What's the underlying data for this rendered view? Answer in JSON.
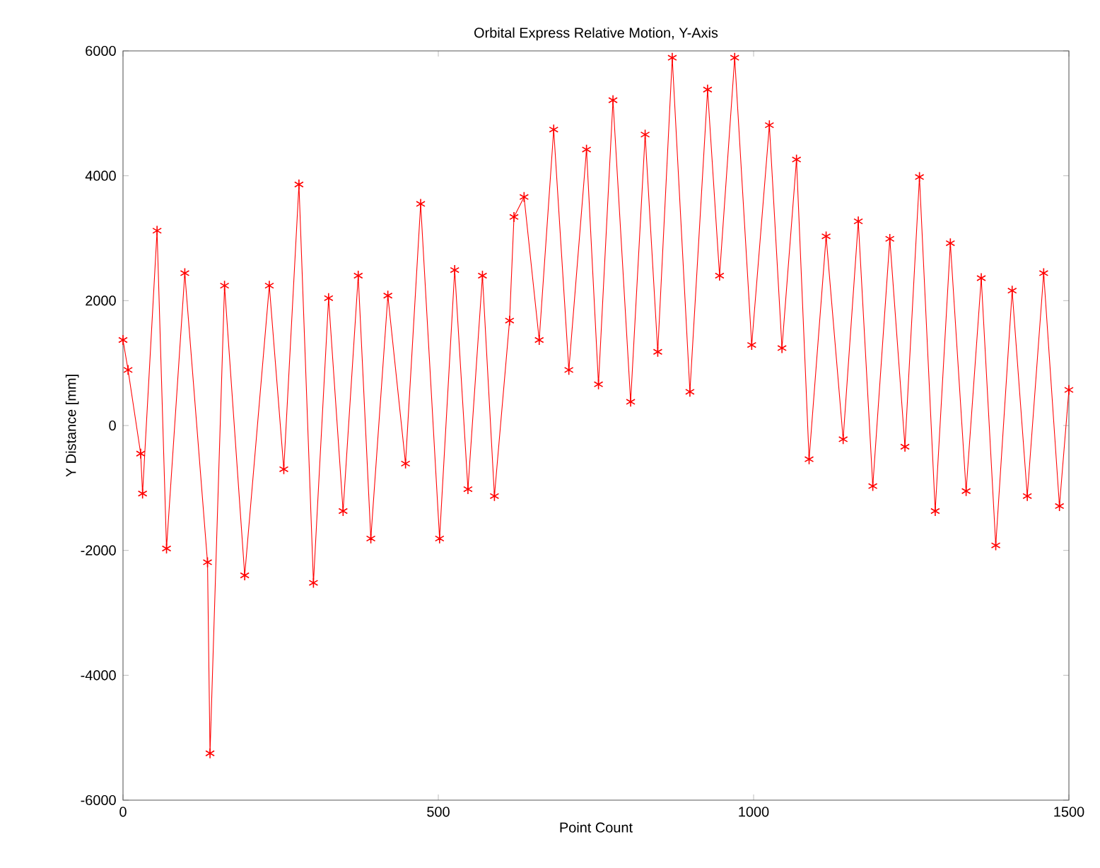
{
  "chart_data": {
    "type": "line",
    "title": "Orbital Express Relative Motion, Y-Axis",
    "xlabel": "Point Count",
    "ylabel": "Y Distance [mm]",
    "xlim": [
      0,
      1500
    ],
    "xticks": [
      0,
      500,
      1000,
      1500
    ],
    "ylim": [
      -6000,
      6000
    ],
    "yticks": [
      -6000,
      -4000,
      -2000,
      0,
      2000,
      4000,
      6000
    ],
    "grid": false,
    "marker": "cross",
    "line_style": "solid",
    "series": [
      {
        "color": "#ff0000",
        "x": [
          0,
          8,
          28,
          31,
          54,
          69,
          98,
          134,
          138,
          161,
          193,
          232,
          255,
          279,
          302,
          326,
          349,
          373,
          393,
          420,
          448,
          472,
          502,
          526,
          547,
          570,
          589,
          613,
          620,
          636,
          660,
          683,
          707,
          735,
          754,
          777,
          805,
          828,
          848,
          871,
          899,
          927,
          946,
          970,
          997,
          1025,
          1045,
          1068,
          1088,
          1115,
          1142,
          1166,
          1189,
          1216,
          1240,
          1263,
          1288,
          1312,
          1337,
          1361,
          1384,
          1410,
          1434,
          1460,
          1485,
          1500
        ],
        "values": [
          1370,
          890,
          -450,
          -1090,
          3120,
          -1970,
          2440,
          -2190,
          -5250,
          2240,
          -2400,
          2240,
          -700,
          3860,
          -2520,
          2040,
          -1370,
          2400,
          -1810,
          2080,
          -610,
          3550,
          -1810,
          2490,
          -1020,
          2400,
          -1130,
          1680,
          3340,
          3660,
          1370,
          4740,
          890,
          4420,
          660,
          5210,
          380,
          4660,
          1180,
          5890,
          540,
          5380,
          2400,
          5890,
          1290,
          4810,
          1240,
          4260,
          -540,
          3030,
          -220,
          3270,
          -970,
          2990,
          -340,
          3980,
          -1370,
          2920,
          -1050,
          2360,
          -1920,
          2160,
          -1130,
          2440,
          -1290,
          570
        ]
      }
    ]
  }
}
